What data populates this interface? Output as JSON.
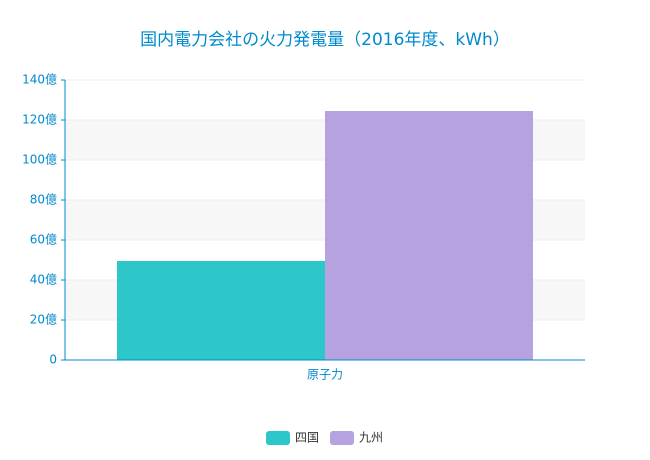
{
  "chart_data": {
    "type": "bar",
    "title": "国内電力会社の火力発電量（2016年度、kWh）",
    "categories": [
      "原子力"
    ],
    "series": [
      {
        "name": "四国",
        "color": "#2ec7c9",
        "values": [
          49.5
        ]
      },
      {
        "name": "九州",
        "color": "#b6a2de",
        "values": [
          124.5
        ]
      }
    ],
    "ylim": [
      0,
      140
    ],
    "yticks": [
      0,
      {
        "value": 20,
        "label": "20億"
      },
      {
        "value": 40,
        "label": "40億"
      },
      {
        "value": 60,
        "label": "60億"
      },
      {
        "value": 80,
        "label": "80億"
      },
      {
        "value": 100,
        "label": "100億"
      },
      {
        "value": 120,
        "label": "120億"
      },
      {
        "value": 140,
        "label": "140億"
      }
    ],
    "grid": true,
    "legend": "bottom"
  }
}
